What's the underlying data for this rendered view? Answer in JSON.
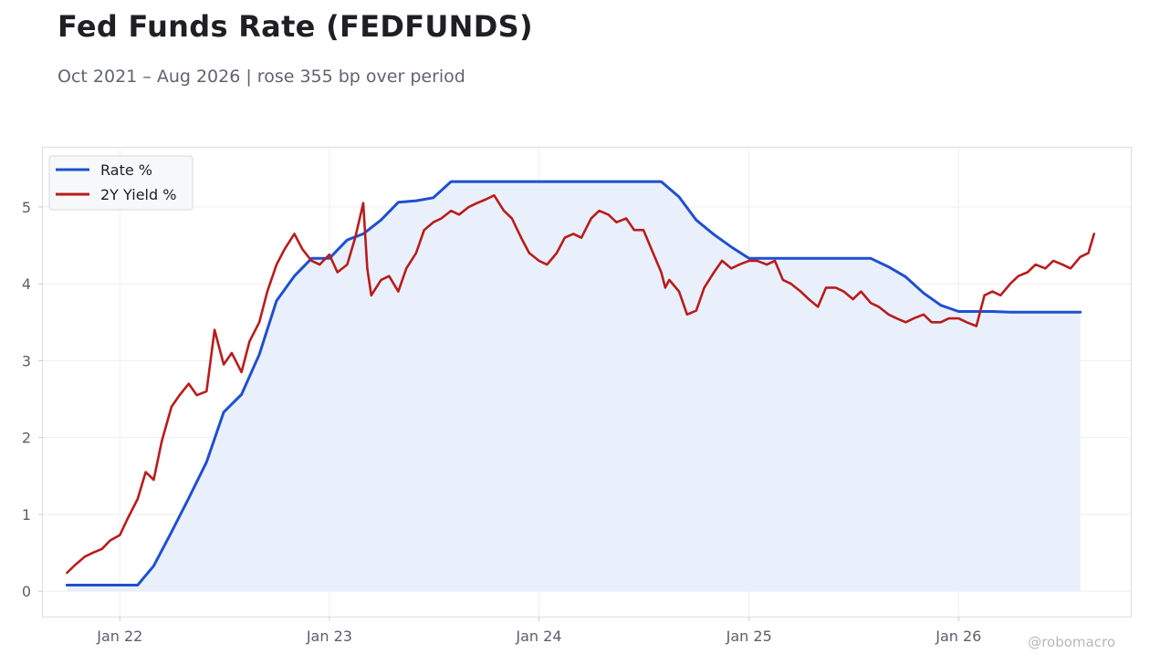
{
  "header": {
    "title": "Fed Funds Rate (FEDFUNDS)",
    "subtitle": "Oct 2021 – Aug 2026 | rose 355 bp over period"
  },
  "watermark": "@robomacro",
  "chart_data": {
    "type": "line",
    "title": "Fed Funds Rate (FEDFUNDS)",
    "subtitle": "Oct 2021 – Aug 2026 | rose 355 bp over period",
    "xlabel": "",
    "ylabel": "",
    "xlim": [
      "2021-08-20",
      "2026-10-28"
    ],
    "ylim": [
      -0.33,
      5.77
    ],
    "yticks": [
      0,
      1,
      2,
      3,
      4,
      5
    ],
    "xticks": [
      {
        "date": "2022-01-01",
        "label": "Jan 22"
      },
      {
        "date": "2023-01-01",
        "label": "Jan 23"
      },
      {
        "date": "2024-01-01",
        "label": "Jan 24"
      },
      {
        "date": "2025-01-01",
        "label": "Jan 25"
      },
      {
        "date": "2026-01-01",
        "label": "Jan 26"
      }
    ],
    "grid": true,
    "legend_position": "top-left",
    "series": [
      {
        "name": "Rate %",
        "color": "#1f4fd1",
        "fill": "#e8eefb",
        "points": [
          [
            "2021-10-01",
            0.08
          ],
          [
            "2021-11-01",
            0.08
          ],
          [
            "2021-12-01",
            0.08
          ],
          [
            "2022-01-01",
            0.08
          ],
          [
            "2022-02-01",
            0.08
          ],
          [
            "2022-03-01",
            0.33
          ],
          [
            "2022-04-01",
            0.77
          ],
          [
            "2022-05-01",
            1.21
          ],
          [
            "2022-06-01",
            1.68
          ],
          [
            "2022-07-01",
            2.33
          ],
          [
            "2022-08-01",
            2.56
          ],
          [
            "2022-09-01",
            3.08
          ],
          [
            "2022-10-01",
            3.78
          ],
          [
            "2022-11-01",
            4.1
          ],
          [
            "2022-12-01",
            4.33
          ],
          [
            "2023-01-01",
            4.33
          ],
          [
            "2023-02-01",
            4.57
          ],
          [
            "2023-03-01",
            4.65
          ],
          [
            "2023-04-01",
            4.83
          ],
          [
            "2023-05-01",
            5.06
          ],
          [
            "2023-06-01",
            5.08
          ],
          [
            "2023-07-01",
            5.12
          ],
          [
            "2023-08-01",
            5.33
          ],
          [
            "2023-09-01",
            5.33
          ],
          [
            "2023-10-01",
            5.33
          ],
          [
            "2023-11-01",
            5.33
          ],
          [
            "2023-12-01",
            5.33
          ],
          [
            "2024-01-01",
            5.33
          ],
          [
            "2024-02-01",
            5.33
          ],
          [
            "2024-03-01",
            5.33
          ],
          [
            "2024-04-01",
            5.33
          ],
          [
            "2024-05-01",
            5.33
          ],
          [
            "2024-06-01",
            5.33
          ],
          [
            "2024-07-01",
            5.33
          ],
          [
            "2024-08-01",
            5.33
          ],
          [
            "2024-09-01",
            5.13
          ],
          [
            "2024-10-01",
            4.83
          ],
          [
            "2024-11-01",
            4.64
          ],
          [
            "2024-12-01",
            4.48
          ],
          [
            "2025-01-01",
            4.33
          ],
          [
            "2025-02-01",
            4.33
          ],
          [
            "2025-03-01",
            4.33
          ],
          [
            "2025-04-01",
            4.33
          ],
          [
            "2025-05-01",
            4.33
          ],
          [
            "2025-06-01",
            4.33
          ],
          [
            "2025-07-01",
            4.33
          ],
          [
            "2025-08-01",
            4.33
          ],
          [
            "2025-09-01",
            4.22
          ],
          [
            "2025-10-01",
            4.09
          ],
          [
            "2025-11-01",
            3.88
          ],
          [
            "2025-12-01",
            3.72
          ],
          [
            "2026-01-01",
            3.64
          ],
          [
            "2026-02-01",
            3.64
          ],
          [
            "2026-03-01",
            3.64
          ],
          [
            "2026-04-01",
            3.63
          ],
          [
            "2026-05-01",
            3.63
          ],
          [
            "2026-06-01",
            3.63
          ],
          [
            "2026-07-01",
            3.63
          ],
          [
            "2026-08-01",
            3.63
          ]
        ]
      },
      {
        "name": "2Y Yield %",
        "color": "#b81c1c",
        "points": [
          [
            "2021-10-01",
            0.24
          ],
          [
            "2021-10-15",
            0.34
          ],
          [
            "2021-11-01",
            0.45
          ],
          [
            "2021-11-15",
            0.5
          ],
          [
            "2021-12-01",
            0.55
          ],
          [
            "2021-12-15",
            0.66
          ],
          [
            "2022-01-01",
            0.73
          ],
          [
            "2022-01-15",
            0.95
          ],
          [
            "2022-02-01",
            1.2
          ],
          [
            "2022-02-15",
            1.55
          ],
          [
            "2022-03-01",
            1.45
          ],
          [
            "2022-03-15",
            1.95
          ],
          [
            "2022-04-01",
            2.4
          ],
          [
            "2022-04-15",
            2.55
          ],
          [
            "2022-05-01",
            2.7
          ],
          [
            "2022-05-15",
            2.55
          ],
          [
            "2022-06-01",
            2.6
          ],
          [
            "2022-06-15",
            3.4
          ],
          [
            "2022-07-01",
            2.95
          ],
          [
            "2022-07-15",
            3.1
          ],
          [
            "2022-08-01",
            2.85
          ],
          [
            "2022-08-15",
            3.25
          ],
          [
            "2022-09-01",
            3.5
          ],
          [
            "2022-09-15",
            3.9
          ],
          [
            "2022-10-01",
            4.25
          ],
          [
            "2022-10-15",
            4.45
          ],
          [
            "2022-11-01",
            4.65
          ],
          [
            "2022-11-15",
            4.45
          ],
          [
            "2022-12-01",
            4.3
          ],
          [
            "2022-12-15",
            4.25
          ],
          [
            "2023-01-01",
            4.38
          ],
          [
            "2023-01-15",
            4.15
          ],
          [
            "2023-02-01",
            4.25
          ],
          [
            "2023-02-15",
            4.6
          ],
          [
            "2023-03-01",
            5.05
          ],
          [
            "2023-03-08",
            4.2
          ],
          [
            "2023-03-15",
            3.85
          ],
          [
            "2023-04-01",
            4.05
          ],
          [
            "2023-04-15",
            4.1
          ],
          [
            "2023-05-01",
            3.9
          ],
          [
            "2023-05-15",
            4.2
          ],
          [
            "2023-06-01",
            4.4
          ],
          [
            "2023-06-15",
            4.7
          ],
          [
            "2023-07-01",
            4.8
          ],
          [
            "2023-07-15",
            4.85
          ],
          [
            "2023-08-01",
            4.95
          ],
          [
            "2023-08-15",
            4.9
          ],
          [
            "2023-09-01",
            5.0
          ],
          [
            "2023-09-15",
            5.05
          ],
          [
            "2023-10-01",
            5.1
          ],
          [
            "2023-10-15",
            5.15
          ],
          [
            "2023-11-01",
            4.95
          ],
          [
            "2023-11-15",
            4.85
          ],
          [
            "2023-12-01",
            4.6
          ],
          [
            "2023-12-15",
            4.4
          ],
          [
            "2024-01-01",
            4.3
          ],
          [
            "2024-01-15",
            4.25
          ],
          [
            "2024-02-01",
            4.4
          ],
          [
            "2024-02-15",
            4.6
          ],
          [
            "2024-03-01",
            4.65
          ],
          [
            "2024-03-15",
            4.6
          ],
          [
            "2024-04-01",
            4.85
          ],
          [
            "2024-04-15",
            4.95
          ],
          [
            "2024-05-01",
            4.9
          ],
          [
            "2024-05-15",
            4.8
          ],
          [
            "2024-06-01",
            4.85
          ],
          [
            "2024-06-15",
            4.7
          ],
          [
            "2024-07-01",
            4.7
          ],
          [
            "2024-07-15",
            4.45
          ],
          [
            "2024-08-01",
            4.15
          ],
          [
            "2024-08-08",
            3.95
          ],
          [
            "2024-08-15",
            4.05
          ],
          [
            "2024-09-01",
            3.9
          ],
          [
            "2024-09-15",
            3.6
          ],
          [
            "2024-10-01",
            3.65
          ],
          [
            "2024-10-15",
            3.95
          ],
          [
            "2024-11-01",
            4.15
          ],
          [
            "2024-11-15",
            4.3
          ],
          [
            "2024-12-01",
            4.2
          ],
          [
            "2024-12-15",
            4.25
          ],
          [
            "2025-01-01",
            4.3
          ],
          [
            "2025-01-15",
            4.3
          ],
          [
            "2025-02-01",
            4.25
          ],
          [
            "2025-02-15",
            4.3
          ],
          [
            "2025-03-01",
            4.05
          ],
          [
            "2025-03-15",
            4.0
          ],
          [
            "2025-04-01",
            3.9
          ],
          [
            "2025-04-15",
            3.8
          ],
          [
            "2025-05-01",
            3.7
          ],
          [
            "2025-05-15",
            3.95
          ],
          [
            "2025-06-01",
            3.95
          ],
          [
            "2025-06-15",
            3.9
          ],
          [
            "2025-07-01",
            3.8
          ],
          [
            "2025-07-15",
            3.9
          ],
          [
            "2025-08-01",
            3.75
          ],
          [
            "2025-08-15",
            3.7
          ],
          [
            "2025-09-01",
            3.6
          ],
          [
            "2025-09-15",
            3.55
          ],
          [
            "2025-10-01",
            3.5
          ],
          [
            "2025-10-15",
            3.55
          ],
          [
            "2025-11-01",
            3.6
          ],
          [
            "2025-11-15",
            3.5
          ],
          [
            "2025-12-01",
            3.5
          ],
          [
            "2025-12-15",
            3.55
          ],
          [
            "2026-01-01",
            3.55
          ],
          [
            "2026-01-15",
            3.5
          ],
          [
            "2026-02-01",
            3.45
          ],
          [
            "2026-02-15",
            3.85
          ],
          [
            "2026-03-01",
            3.9
          ],
          [
            "2026-03-15",
            3.85
          ],
          [
            "2026-04-01",
            4.0
          ],
          [
            "2026-04-15",
            4.1
          ],
          [
            "2026-05-01",
            4.15
          ],
          [
            "2026-05-15",
            4.25
          ],
          [
            "2026-06-01",
            4.2
          ],
          [
            "2026-06-15",
            4.3
          ],
          [
            "2026-07-01",
            4.25
          ],
          [
            "2026-07-15",
            4.2
          ],
          [
            "2026-08-01",
            4.35
          ],
          [
            "2026-08-15",
            4.4
          ],
          [
            "2026-08-25",
            4.65
          ]
        ]
      }
    ]
  }
}
